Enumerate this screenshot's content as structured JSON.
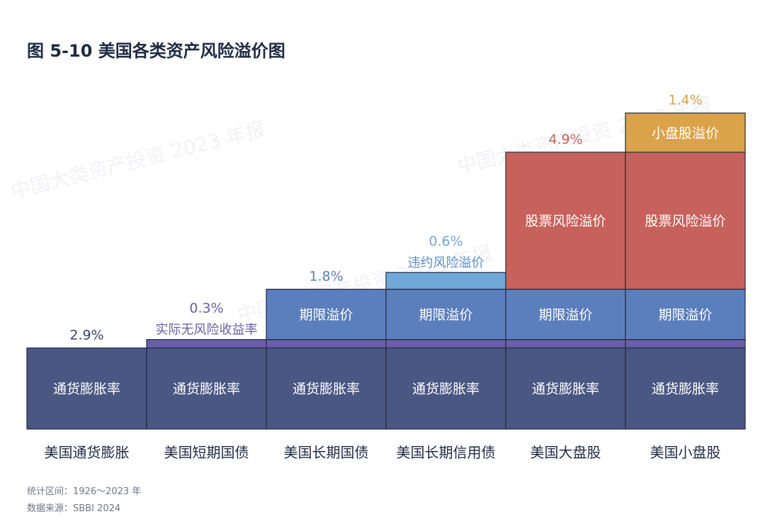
{
  "title": "图 5-10  美国各类资产风险溢价图",
  "watermark": "中国大类资产投资 2023 年报",
  "chart_data": {
    "type": "bar",
    "subtype": "stacked-step",
    "categories": [
      "美国通货膨胀",
      "美国短期国债",
      "美国长期国债",
      "美国长期信用债",
      "美国大盘股",
      "美国小盘股"
    ],
    "series": [
      {
        "name": "通货膨胀率",
        "key": "inflation",
        "color": "#4a5783",
        "values": [
          2.9,
          2.9,
          2.9,
          2.9,
          2.9,
          2.9
        ]
      },
      {
        "name": "实际无风险收益率",
        "key": "real_rf",
        "color": "#6b5ea8",
        "values": [
          0,
          0.3,
          0.3,
          0.3,
          0.3,
          0.3
        ]
      },
      {
        "name": "期限溢价",
        "key": "term",
        "color": "#5b7ebd",
        "values": [
          0,
          0,
          1.8,
          1.8,
          1.8,
          1.8
        ]
      },
      {
        "name": "违约风险溢价",
        "key": "default",
        "color": "#70a8d8",
        "values": [
          0,
          0,
          0,
          0.6,
          0,
          0
        ]
      },
      {
        "name": "股票风险溢价",
        "key": "equity",
        "color": "#c6625b",
        "values": [
          0,
          0,
          0,
          0,
          4.9,
          4.9
        ]
      },
      {
        "name": "小盘股溢价",
        "key": "smallcap",
        "color": "#dba349",
        "values": [
          0,
          0,
          0,
          0,
          0,
          1.4
        ]
      }
    ],
    "inner_labels": {
      "inflation": "通货膨胀率",
      "term": "期限溢价",
      "equity": "股票风险溢价",
      "smallcap": "小盘股溢价"
    },
    "step_labels": [
      {
        "category_index": 0,
        "series_key": "inflation",
        "value_text": "2.9%",
        "value_color": "#3a4468"
      },
      {
        "category_index": 1,
        "series_key": "real_rf",
        "value_text": "0.3%",
        "value_color": "#6b5ea8",
        "caption": "实际无风险收益率",
        "caption_color": "#6b5ea8"
      },
      {
        "category_index": 2,
        "series_key": "term",
        "value_text": "1.8%",
        "value_color": "#5b7ebd"
      },
      {
        "category_index": 3,
        "series_key": "default",
        "value_text": "0.6%",
        "value_color": "#70a8d8",
        "caption": "违约风险溢价",
        "caption_color": "#5b8fcf"
      },
      {
        "category_index": 4,
        "series_key": "equity",
        "value_text": "4.9%",
        "value_color": "#c6625b"
      },
      {
        "category_index": 5,
        "series_key": "smallcap",
        "value_text": "1.4%",
        "value_color": "#dba349"
      }
    ],
    "unit": "%"
  },
  "footer": {
    "period": "统计区间：1926～2023 年",
    "source": "数据来源：SBBI 2024"
  }
}
